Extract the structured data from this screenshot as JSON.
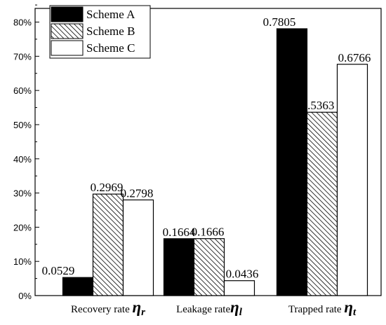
{
  "chart_data": {
    "type": "bar",
    "categories": [
      {
        "label": "Recovery rate ",
        "symbol": "η",
        "sub": "r"
      },
      {
        "label": "Leakage rate",
        "symbol": "η",
        "sub": "l"
      },
      {
        "label": "Trapped rate ",
        "symbol": "η",
        "sub": "t"
      }
    ],
    "series": [
      {
        "name": "Scheme A",
        "fill": "solid-black",
        "values": [
          0.0529,
          0.1664,
          0.7805
        ],
        "labels": [
          "0.0529",
          "0.1664",
          "0.7805"
        ]
      },
      {
        "name": "Scheme B",
        "fill": "diagonal-hatch",
        "values": [
          0.2969,
          0.1666,
          0.5363
        ],
        "labels": [
          "0.2969",
          "0.1666",
          "0.5363"
        ]
      },
      {
        "name": "Scheme C",
        "fill": "white",
        "values": [
          0.2798,
          0.0436,
          0.6766
        ],
        "labels": [
          "0.2798",
          "0.0436",
          "0.6766"
        ]
      }
    ],
    "ylim": [
      0,
      0.84
    ],
    "yticks": [
      0,
      0.1,
      0.2,
      0.3,
      0.4,
      0.5,
      0.6,
      0.7,
      0.8
    ],
    "ytick_labels": [
      "0%",
      "10%",
      "20%",
      "30%",
      "40%",
      "50%",
      "60%",
      "70%",
      "80%"
    ],
    "legend_position": "top-left",
    "grid": false,
    "colors": {
      "solid": "#000000",
      "hatch": "#000000",
      "background": "#ffffff"
    }
  }
}
